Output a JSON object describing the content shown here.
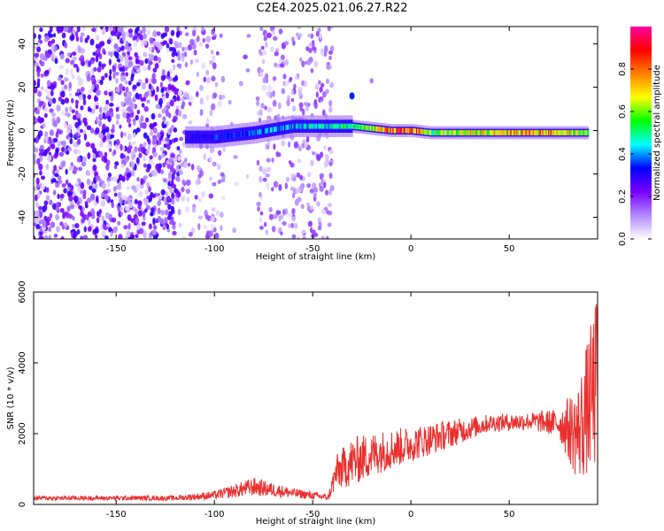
{
  "title": "C2E4.2025.021.06.27.R22",
  "chart_data": [
    {
      "type": "heatmap",
      "xlabel": "Height of straight line (km)",
      "ylabel": "Frequency (Hz)",
      "xlim": [
        -192,
        95
      ],
      "ylim": [
        -50,
        48
      ],
      "xticks": [
        -150,
        -100,
        -50,
        0,
        50
      ],
      "yticks": [
        -40,
        -20,
        0,
        20,
        40
      ],
      "colorbar": {
        "label": "Normalized spectral amplitude",
        "range": [
          0,
          1
        ],
        "ticks": [
          "0.0",
          "0.2",
          "0.4",
          "0.6",
          "0.8"
        ],
        "colormap": [
          "#ffffff",
          "#b089ff",
          "#7a00ff",
          "#0000ff",
          "#00ffff",
          "#00ff00",
          "#ffff00",
          "#ff8000",
          "#ff0000",
          "#ff00a0"
        ]
      },
      "noise_region_x": [
        -192,
        -40
      ],
      "ridge": [
        {
          "x": -115,
          "y": -3,
          "amp": 0.3
        },
        {
          "x": -100,
          "y": -3,
          "amp": 0.35
        },
        {
          "x": -80,
          "y": -1,
          "amp": 0.4
        },
        {
          "x": -60,
          "y": 2,
          "amp": 0.45
        },
        {
          "x": -40,
          "y": 2,
          "amp": 0.5
        },
        {
          "x": -30,
          "y": 2,
          "amp": 0.55
        },
        {
          "x": -20,
          "y": 1,
          "amp": 0.7
        },
        {
          "x": -10,
          "y": 0,
          "amp": 0.85
        },
        {
          "x": 0,
          "y": 0,
          "amp": 0.9
        },
        {
          "x": 10,
          "y": -1,
          "amp": 0.6
        },
        {
          "x": 30,
          "y": -1,
          "amp": 0.7
        },
        {
          "x": 50,
          "y": -1,
          "amp": 0.8
        },
        {
          "x": 70,
          "y": -1,
          "amp": 0.8
        },
        {
          "x": 90,
          "y": -1,
          "amp": 0.6
        }
      ]
    },
    {
      "type": "line",
      "xlabel": "Height of straight line (km)",
      "ylabel": "SNR (10 * v/v)",
      "xlim": [
        -192,
        95
      ],
      "ylim": [
        0,
        6000
      ],
      "xticks": [
        -150,
        -100,
        -50,
        0,
        50
      ],
      "yticks": [
        0,
        2000,
        4000,
        6000
      ],
      "color": "#e8302e",
      "envelope": [
        {
          "x": -192,
          "mean": 180,
          "spread": 60
        },
        {
          "x": -120,
          "mean": 180,
          "spread": 70
        },
        {
          "x": -100,
          "mean": 260,
          "spread": 120
        },
        {
          "x": -80,
          "mean": 500,
          "spread": 260
        },
        {
          "x": -60,
          "mean": 320,
          "spread": 140
        },
        {
          "x": -42,
          "mean": 200,
          "spread": 90
        },
        {
          "x": -38,
          "mean": 900,
          "spread": 500
        },
        {
          "x": -30,
          "mean": 1200,
          "spread": 700
        },
        {
          "x": -15,
          "mean": 1500,
          "spread": 600
        },
        {
          "x": 0,
          "mean": 1700,
          "spread": 500
        },
        {
          "x": 20,
          "mean": 2000,
          "spread": 400
        },
        {
          "x": 40,
          "mean": 2300,
          "spread": 250
        },
        {
          "x": 60,
          "mean": 2350,
          "spread": 250
        },
        {
          "x": 75,
          "mean": 2300,
          "spread": 400
        },
        {
          "x": 85,
          "mean": 2000,
          "spread": 1400
        },
        {
          "x": 95,
          "mean": 3500,
          "spread": 2500
        }
      ]
    }
  ]
}
